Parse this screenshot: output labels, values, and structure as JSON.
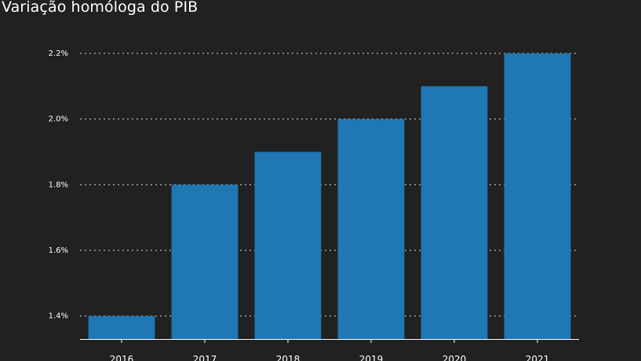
{
  "chart_data": {
    "type": "bar",
    "title": "Variação homóloga do PIB",
    "categories": [
      "2016",
      "2017",
      "2018",
      "2019",
      "2020",
      "2021"
    ],
    "values": [
      1.4,
      1.8,
      1.9,
      2.0,
      2.1,
      2.2
    ],
    "ytick_values": [
      1.4,
      1.6,
      1.8,
      2.0,
      2.2
    ],
    "ytick_labels": [
      "1.4%",
      "1.6%",
      "1.8%",
      "2.0%",
      "2.2%"
    ],
    "xlabel": "",
    "ylabel": "",
    "ylim": [
      1.33,
      2.2
    ],
    "grid": true,
    "bar_color": "#1f77b4",
    "background": "#212121"
  }
}
